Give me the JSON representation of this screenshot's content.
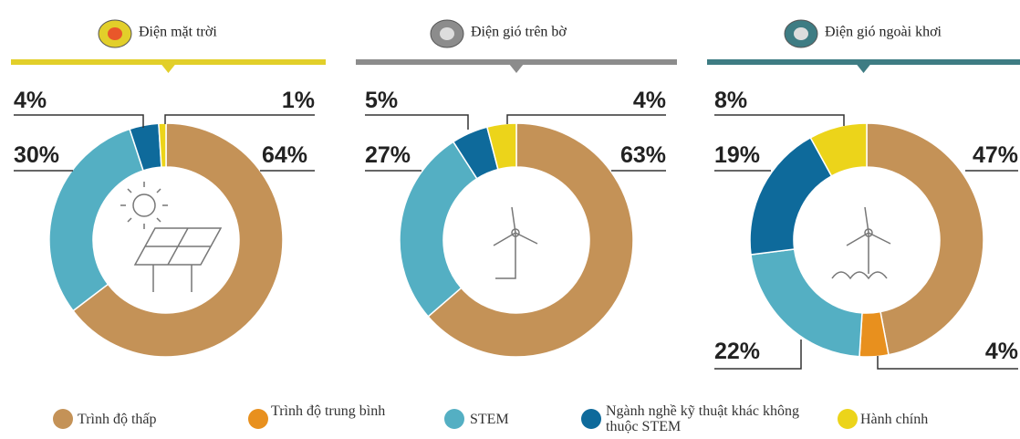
{
  "chart_data": [
    {
      "type": "pie",
      "title": "Điện mặt trời",
      "accent": "#e2cf2a",
      "values": [
        64,
        null,
        30,
        4,
        1
      ],
      "value_labels": [
        "64%",
        null,
        "30%",
        "4%",
        "1%"
      ]
    },
    {
      "type": "pie",
      "title": "Điện gió trên bờ",
      "accent": "#8c8c8c",
      "values": [
        63,
        null,
        27,
        5,
        4
      ],
      "value_labels": [
        "63%",
        null,
        "27%",
        "5%",
        "4%"
      ]
    },
    {
      "type": "pie",
      "title": "Điện gió ngoài khơi",
      "accent": "#3e7c83",
      "values": [
        47,
        4,
        22,
        19,
        8
      ],
      "value_labels": [
        "47%",
        "4%",
        "22%",
        "19%",
        "8%"
      ]
    }
  ],
  "legend": {
    "labels": [
      "Trình độ thấp",
      "Trình độ trung bình",
      "STEM",
      "Ngành nghề kỹ thuật khác không thuộc STEM",
      "Hành chính"
    ],
    "colors": [
      "#c49257",
      "#e8901e",
      "#54afc3",
      "#0e6a9b",
      "#ecd41a"
    ]
  }
}
